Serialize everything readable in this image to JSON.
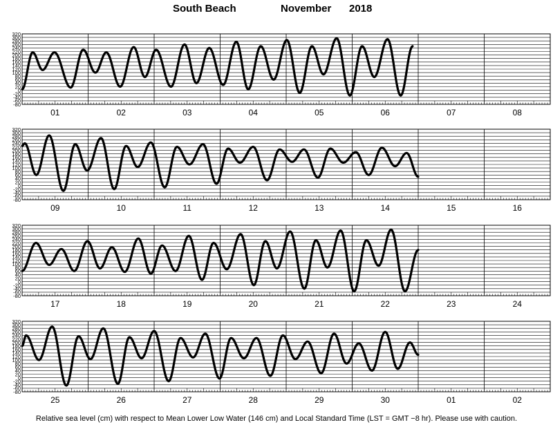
{
  "title": {
    "location": "South Beach",
    "month": "November",
    "year": "2018"
  },
  "footer": "Relative sea level (cm) with respect to Mean Lower Low Water (146 cm) and Local Standard Time (LST = GMT −8 hr). Please use with caution.",
  "colors": {
    "curve": "#000000",
    "grid": "#000000",
    "background": "#ffffff"
  },
  "chart_data": {
    "type": "line",
    "title": "South Beach November 2018",
    "ylim": [
      -80,
      320
    ],
    "y_ticks": [
      -80,
      -60,
      -40,
      -20,
      0,
      20,
      40,
      60,
      80,
      100,
      120,
      140,
      160,
      180,
      200,
      220,
      240,
      260,
      280,
      300,
      320
    ],
    "x_unit": "day",
    "grid": true,
    "panels": [
      {
        "days": [
          "01",
          "02",
          "03",
          "04",
          "05",
          "06",
          "07",
          "08"
        ],
        "extremes": [
          {
            "t": 0.0,
            "v": 5
          },
          {
            "t": 0.32,
            "v": 215
          },
          {
            "t": 0.62,
            "v": 115
          },
          {
            "t": 0.98,
            "v": 215
          },
          {
            "t": 1.47,
            "v": 15
          },
          {
            "t": 1.85,
            "v": 230
          },
          {
            "t": 2.22,
            "v": 100
          },
          {
            "t": 2.55,
            "v": 215
          },
          {
            "t": 2.97,
            "v": 20
          },
          {
            "t": 3.38,
            "v": 245
          },
          {
            "t": 3.72,
            "v": 75
          },
          {
            "t": 4.06,
            "v": 230
          },
          {
            "t": 4.51,
            "v": 20
          },
          {
            "t": 4.92,
            "v": 260
          },
          {
            "t": 5.28,
            "v": 40
          },
          {
            "t": 5.67,
            "v": 240
          },
          {
            "t": 6.09,
            "v": 30
          },
          {
            "t": 6.49,
            "v": 275
          },
          {
            "t": 6.85,
            "v": 5
          },
          {
            "t": 7.23,
            "v": 250
          },
          {
            "t": 7.62,
            "v": 60
          },
          {
            "t": 8.02,
            "v": 285
          },
          {
            "t": 8.41,
            "v": -15
          },
          {
            "t": 8.78,
            "v": 250
          },
          {
            "t": 9.13,
            "v": 90
          },
          {
            "t": 9.53,
            "v": 295
          },
          {
            "t": 9.93,
            "v": -30
          },
          {
            "t": 10.3,
            "v": 250
          },
          {
            "t": 10.67,
            "v": 75
          },
          {
            "t": 11.07,
            "v": 290
          },
          {
            "t": 11.47,
            "v": -30
          },
          {
            "t": 11.83,
            "v": 250
          }
        ]
      },
      {
        "days": [
          "09",
          "10",
          "11",
          "12",
          "13",
          "14",
          "15",
          "16"
        ],
        "extremes": [
          {
            "t": 0.0,
            "v": 225
          },
          {
            "t": 0.08,
            "v": 240
          },
          {
            "t": 0.43,
            "v": 60
          },
          {
            "t": 0.82,
            "v": 285
          },
          {
            "t": 1.25,
            "v": -30
          },
          {
            "t": 1.61,
            "v": 235
          },
          {
            "t": 1.97,
            "v": 85
          },
          {
            "t": 2.39,
            "v": 270
          },
          {
            "t": 2.79,
            "v": -20
          },
          {
            "t": 3.15,
            "v": 225
          },
          {
            "t": 3.5,
            "v": 105
          },
          {
            "t": 3.9,
            "v": 245
          },
          {
            "t": 4.32,
            "v": -10
          },
          {
            "t": 4.69,
            "v": 220
          },
          {
            "t": 5.07,
            "v": 120
          },
          {
            "t": 5.48,
            "v": 235
          },
          {
            "t": 5.89,
            "v": 10
          },
          {
            "t": 6.24,
            "v": 210
          },
          {
            "t": 6.6,
            "v": 130
          },
          {
            "t": 7.0,
            "v": 220
          },
          {
            "t": 7.42,
            "v": 30
          },
          {
            "t": 7.8,
            "v": 205
          },
          {
            "t": 8.18,
            "v": 135
          },
          {
            "t": 8.54,
            "v": 205
          },
          {
            "t": 8.96,
            "v": 45
          },
          {
            "t": 9.34,
            "v": 210
          },
          {
            "t": 9.73,
            "v": 130
          },
          {
            "t": 10.11,
            "v": 190
          },
          {
            "t": 10.5,
            "v": 60
          },
          {
            "t": 10.9,
            "v": 215
          },
          {
            "t": 11.3,
            "v": 110
          },
          {
            "t": 11.65,
            "v": 185
          },
          {
            "t": 12.0,
            "v": 50
          }
        ]
      },
      {
        "days": [
          "17",
          "18",
          "19",
          "20",
          "21",
          "22",
          "23",
          "24"
        ],
        "extremes": [
          {
            "t": 0.0,
            "v": 60
          },
          {
            "t": 0.42,
            "v": 220
          },
          {
            "t": 0.82,
            "v": 95
          },
          {
            "t": 1.19,
            "v": 185
          },
          {
            "t": 1.58,
            "v": 60
          },
          {
            "t": 1.98,
            "v": 230
          },
          {
            "t": 2.36,
            "v": 75
          },
          {
            "t": 2.72,
            "v": 195
          },
          {
            "t": 3.11,
            "v": 55
          },
          {
            "t": 3.52,
            "v": 245
          },
          {
            "t": 3.9,
            "v": 45
          },
          {
            "t": 4.24,
            "v": 205
          },
          {
            "t": 4.65,
            "v": 60
          },
          {
            "t": 5.05,
            "v": 260
          },
          {
            "t": 5.45,
            "v": 10
          },
          {
            "t": 5.8,
            "v": 220
          },
          {
            "t": 6.2,
            "v": 70
          },
          {
            "t": 6.62,
            "v": 270
          },
          {
            "t": 7.02,
            "v": -20
          },
          {
            "t": 7.37,
            "v": 230
          },
          {
            "t": 7.72,
            "v": 75
          },
          {
            "t": 8.12,
            "v": 285
          },
          {
            "t": 8.55,
            "v": -40
          },
          {
            "t": 8.9,
            "v": 235
          },
          {
            "t": 9.25,
            "v": 80
          },
          {
            "t": 9.65,
            "v": 290
          },
          {
            "t": 10.06,
            "v": -55
          },
          {
            "t": 10.43,
            "v": 235
          },
          {
            "t": 10.8,
            "v": 90
          },
          {
            "t": 11.18,
            "v": 295
          },
          {
            "t": 11.6,
            "v": -55
          },
          {
            "t": 12.0,
            "v": 180
          }
        ]
      },
      {
        "days": [
          "25",
          "26",
          "27",
          "28",
          "29",
          "30",
          "01",
          "02"
        ],
        "extremes": [
          {
            "t": 0.0,
            "v": 180
          },
          {
            "t": 0.12,
            "v": 240
          },
          {
            "t": 0.51,
            "v": 100
          },
          {
            "t": 0.91,
            "v": 290
          },
          {
            "t": 1.34,
            "v": -45
          },
          {
            "t": 1.71,
            "v": 235
          },
          {
            "t": 2.07,
            "v": 105
          },
          {
            "t": 2.46,
            "v": 280
          },
          {
            "t": 2.9,
            "v": -35
          },
          {
            "t": 3.25,
            "v": 230
          },
          {
            "t": 3.62,
            "v": 110
          },
          {
            "t": 4.0,
            "v": 265
          },
          {
            "t": 4.44,
            "v": -20
          },
          {
            "t": 4.8,
            "v": 225
          },
          {
            "t": 5.18,
            "v": 115
          },
          {
            "t": 5.55,
            "v": 250
          },
          {
            "t": 5.98,
            "v": -5
          },
          {
            "t": 6.33,
            "v": 225
          },
          {
            "t": 6.72,
            "v": 110
          },
          {
            "t": 7.1,
            "v": 225
          },
          {
            "t": 7.52,
            "v": 10
          },
          {
            "t": 7.9,
            "v": 240
          },
          {
            "t": 8.28,
            "v": 105
          },
          {
            "t": 8.65,
            "v": 205
          },
          {
            "t": 9.06,
            "v": 25
          },
          {
            "t": 9.45,
            "v": 250
          },
          {
            "t": 9.83,
            "v": 80
          },
          {
            "t": 10.2,
            "v": 195
          },
          {
            "t": 10.6,
            "v": 40
          },
          {
            "t": 11.0,
            "v": 260
          },
          {
            "t": 11.38,
            "v": 50
          },
          {
            "t": 11.75,
            "v": 200
          },
          {
            "t": 12.0,
            "v": 130
          }
        ]
      }
    ]
  }
}
